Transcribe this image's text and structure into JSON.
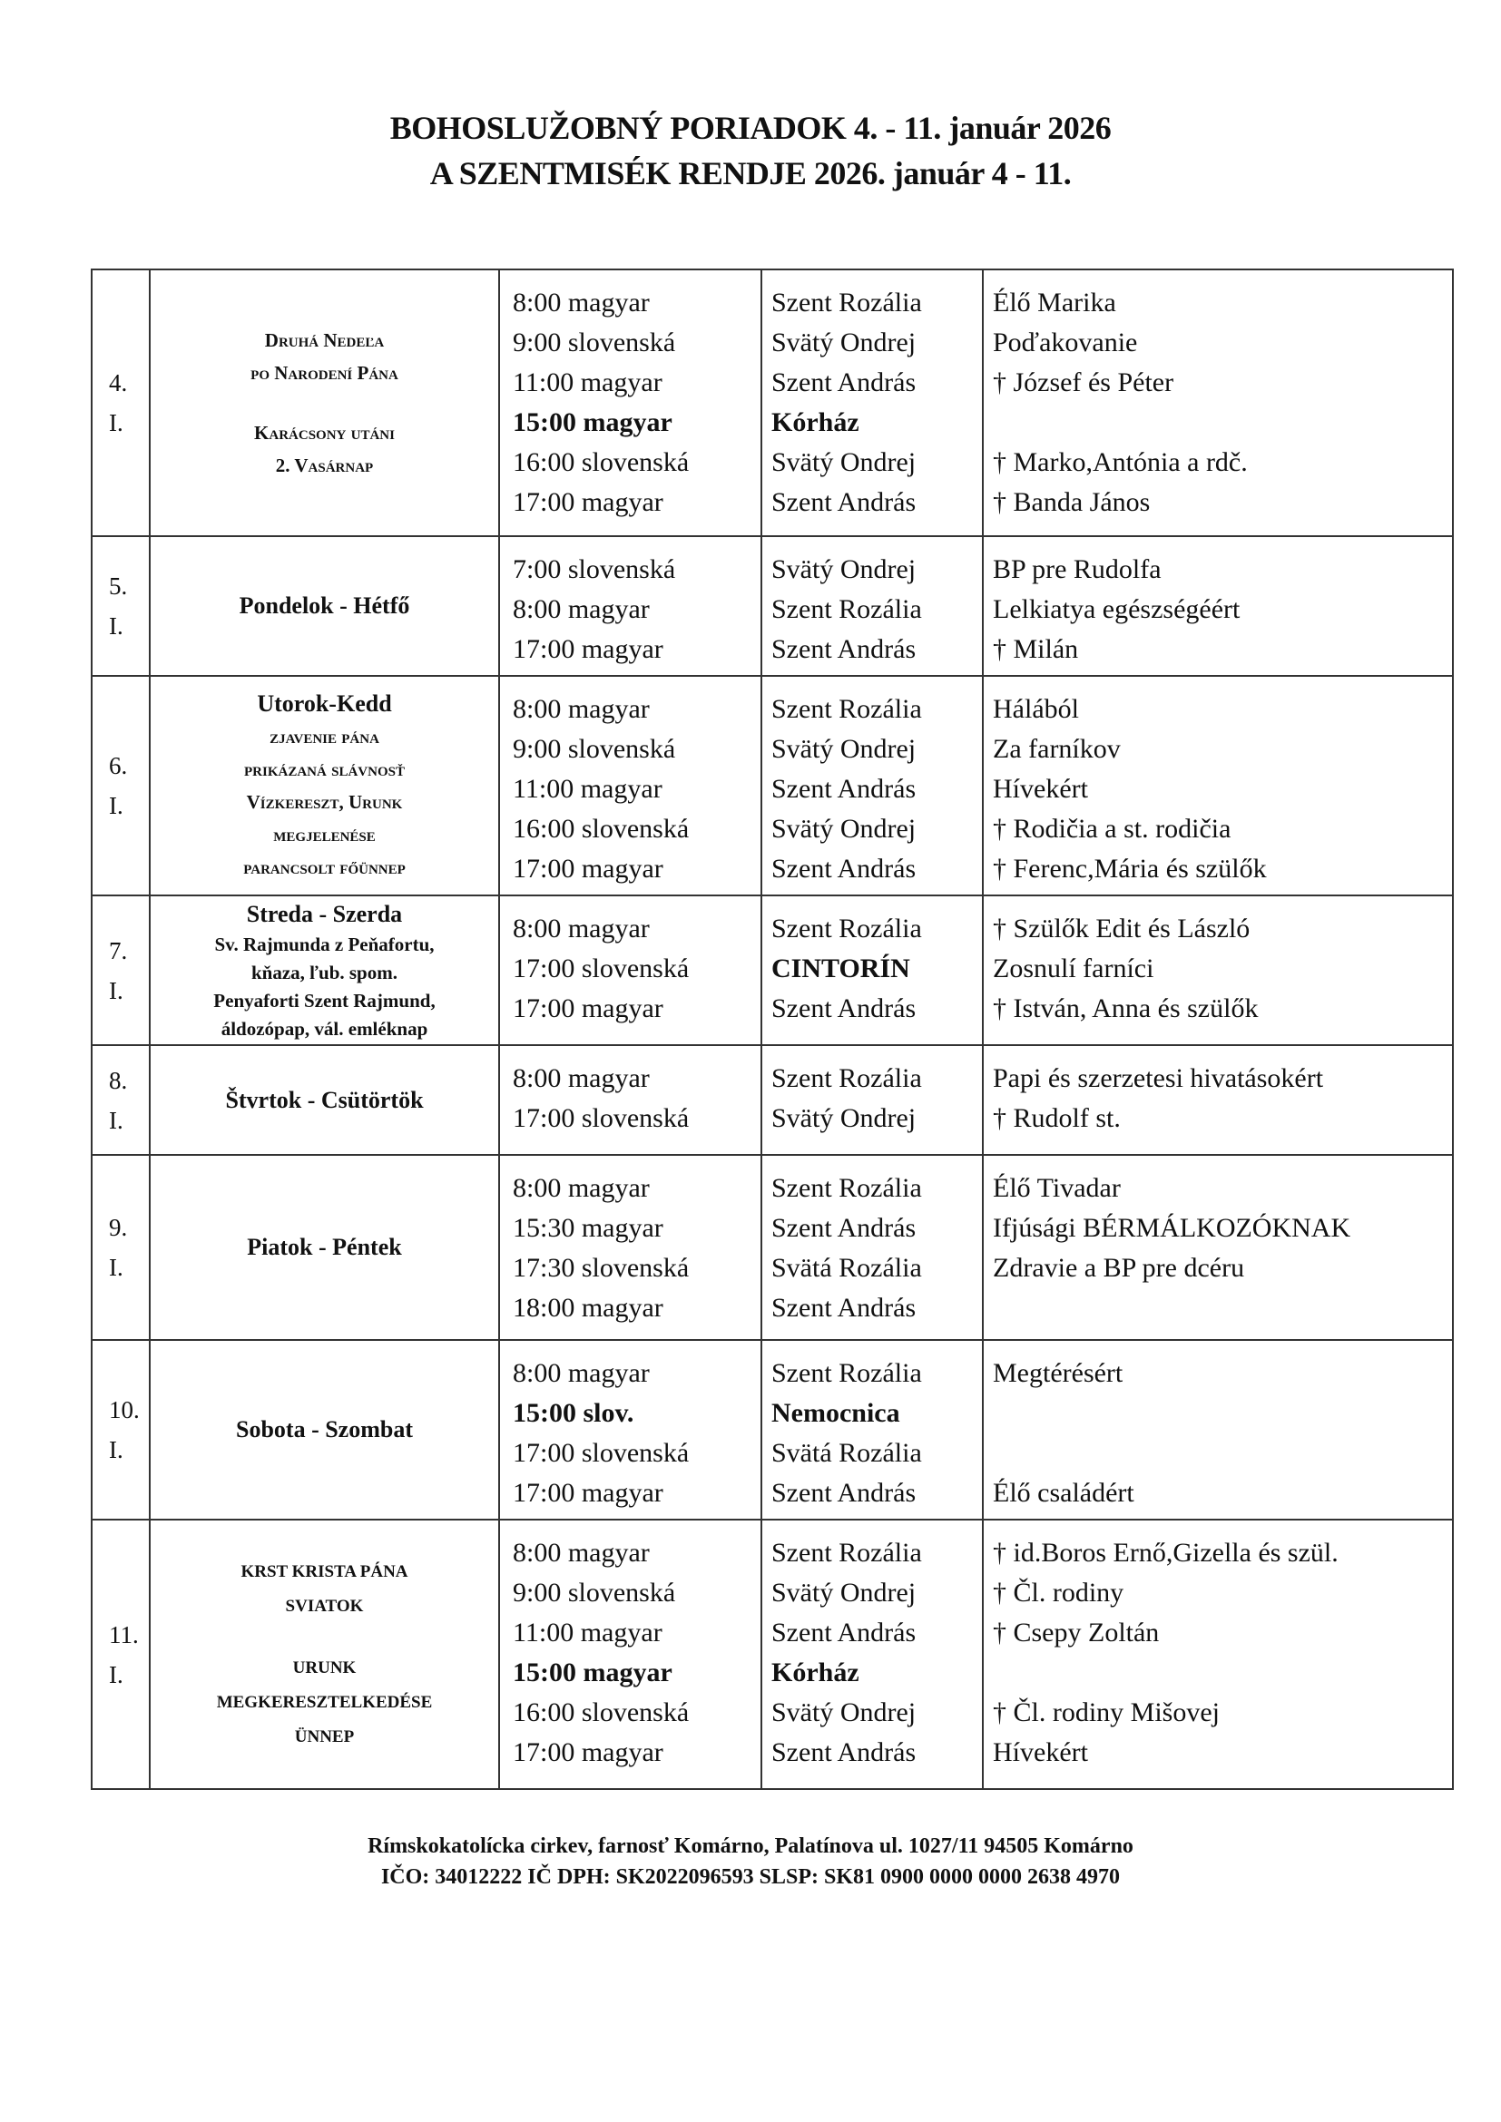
{
  "header": {
    "title_sk": "BOHOSLUŽOBNÝ PORIADOK  4. - 11. január 2026",
    "title_hu": "A  SZENTMISÉK RENDJE 2026. január 4 - 11."
  },
  "days": [
    {
      "date": [
        "4.",
        "I."
      ],
      "label": [
        {
          "t": "Druhá Nedeľa",
          "s": "sc"
        },
        {
          "t": "po Narodení Pána",
          "s": "sc"
        },
        {
          "t": "",
          "s": "empty"
        },
        {
          "t": "Karácsony utáni",
          "s": "sc"
        },
        {
          "t": "2. Vasárnap",
          "s": "sc"
        }
      ],
      "masses": [
        {
          "time": "8:00 magyar",
          "place": "Szent Rozália",
          "intention": "Élő Marika"
        },
        {
          "time": "9:00 slovenská",
          "place": "Svätý Ondrej",
          "intention": "Poďakovanie"
        },
        {
          "time": "11:00 magyar",
          "place": "Szent András",
          "intention": "† József és Péter"
        },
        {
          "time": "15:00 magyar",
          "place": "Kórház",
          "intention": "",
          "bold": true
        },
        {
          "time": "16:00 slovenská",
          "place": "Svätý Ondrej",
          "intention": "† Marko,Antónia a rdč."
        },
        {
          "time": "17:00 magyar",
          "place": "Szent András",
          "intention": "† Banda János"
        }
      ]
    },
    {
      "date": [
        "5.",
        "I."
      ],
      "label": [
        {
          "t": "Pondelok - Hétfő",
          "s": "main"
        }
      ],
      "masses": [
        {
          "time": "7:00 slovenská",
          "place": "Svätý Ondrej",
          "intention": "BP pre Rudolfa"
        },
        {
          "time": "8:00 magyar",
          "place": "Szent Rozália",
          "intention": "Lelkiatya egészségéért"
        },
        {
          "time": "17:00 magyar",
          "place": "Szent András",
          "intention": "† Milán"
        }
      ]
    },
    {
      "date": [
        "6.",
        "I."
      ],
      "label": [
        {
          "t": "Utorok-Kedd",
          "s": "main"
        },
        {
          "t": "zjavenie pána",
          "s": "sc"
        },
        {
          "t": "prikázaná slávnosť",
          "s": "sc"
        },
        {
          "t": "Vízkereszt, Urunk",
          "s": "sc"
        },
        {
          "t": "megjelenése",
          "s": "sc"
        },
        {
          "t": "parancsolt főünnep",
          "s": "sc"
        }
      ],
      "masses": [
        {
          "time": "8:00 magyar",
          "place": "Szent Rozália",
          "intention": "Hálából"
        },
        {
          "time": "9:00 slovenská",
          "place": "Svätý Ondrej",
          "intention": "Za farníkov"
        },
        {
          "time": "11:00 magyar",
          "place": "Szent András",
          "intention": "Hívekért"
        },
        {
          "time": "16:00 slovenská",
          "place": "Svätý Ondrej",
          "intention": "† Rodičia a st. rodičia"
        },
        {
          "time": "17:00 magyar",
          "place": "Szent András",
          "intention": "† Ferenc,Mária és szülők"
        }
      ]
    },
    {
      "date": [
        "7.",
        "I."
      ],
      "label": [
        {
          "t": "Streda - Szerda",
          "s": "main"
        },
        {
          "t": "Sv. Rajmunda z Peňafortu,",
          "s": "sm"
        },
        {
          "t": "kňaza, ľub. spom.",
          "s": "sm"
        },
        {
          "t": "Penyaforti Szent Rajmund,",
          "s": "sm"
        },
        {
          "t": "áldozópap, vál. emléknap",
          "s": "sm"
        }
      ],
      "masses": [
        {
          "time": "8:00 magyar",
          "place": "Szent Rozália",
          "intention": "† Szülők Edit és László"
        },
        {
          "time": "17:00 slovenská",
          "place": "CINTORÍN",
          "intention": "Zosnulí farníci",
          "place_bold": true
        },
        {
          "time": "17:00 magyar",
          "place": "Szent András",
          "intention": "† István, Anna és szülők"
        }
      ]
    },
    {
      "date": [
        "8.",
        "I."
      ],
      "label": [
        {
          "t": "Štvrtok - Csütörtök",
          "s": "main"
        }
      ],
      "masses": [
        {
          "time": "8:00 magyar",
          "place": "Szent Rozália",
          "intention": "Papi és szerzetesi hivatásokért"
        },
        {
          "time": "17:00 slovenská",
          "place": "Svätý Ondrej",
          "intention": "† Rudolf st."
        }
      ]
    },
    {
      "date": [
        "9.",
        "I."
      ],
      "label": [
        {
          "t": "Piatok - Péntek",
          "s": "main"
        }
      ],
      "masses": [
        {
          "time": "8:00 magyar",
          "place": "Szent Rozália",
          "intention": "Élő Tivadar"
        },
        {
          "time": "15:30 magyar",
          "place": "Szent András",
          "intention": "Ifjúsági BÉRMÁLKOZÓKNAK"
        },
        {
          "time": "17:30 slovenská",
          "place": "Svätá Rozália",
          "intention": "Zdravie a BP pre dcéru"
        },
        {
          "time": "18:00 magyar",
          "place": "Szent András",
          "intention": ""
        }
      ]
    },
    {
      "date": [
        "10.",
        "I."
      ],
      "label": [
        {
          "t": "Sobota - Szombat",
          "s": "main"
        }
      ],
      "masses": [
        {
          "time": "8:00 magyar",
          "place": "Szent Rozália",
          "intention": "Megtérésért"
        },
        {
          "time": "15:00 slov.",
          "place": "Nemocnica",
          "intention": "",
          "bold": true
        },
        {
          "time": "17:00 slovenská",
          "place": "Svätá Rozália",
          "intention": ""
        },
        {
          "time": "17:00 magyar",
          "place": "Szent András",
          "intention": "Élő családért"
        }
      ]
    },
    {
      "date": [
        "11.",
        "I."
      ],
      "label": [
        {
          "t": "KRST KRISTA PÁNA",
          "s": "cap"
        },
        {
          "t": "SVIATOK",
          "s": "cap"
        },
        {
          "t": "",
          "s": "empty"
        },
        {
          "t": "URUNK",
          "s": "cap"
        },
        {
          "t": "MEGKERESZTELKEDÉSE",
          "s": "cap"
        },
        {
          "t": "ÜNNEP",
          "s": "cap"
        }
      ],
      "masses": [
        {
          "time": "8:00 magyar",
          "place": "Szent Rozália",
          "intention": "† id.Boros Ernő,Gizella és szül."
        },
        {
          "time": "9:00 slovenská",
          "place": "Svätý Ondrej",
          "intention": "† Čl. rodiny"
        },
        {
          "time": "11:00 magyar",
          "place": "Szent András",
          "intention": "† Csepy Zoltán"
        },
        {
          "time": "15:00 magyar",
          "place": "Kórház",
          "intention": "",
          "bold": true
        },
        {
          "time": "16:00 slovenská",
          "place": "Svätý Ondrej",
          "intention": "† Čl. rodiny Mišovej"
        },
        {
          "time": "17:00 magyar",
          "place": "Szent András",
          "intention": "Hívekért"
        }
      ]
    }
  ],
  "footer": {
    "address": "Rímskokatolícka cirkev, farnosť Komárno, Palatínova ul. 1027/11 94505 Komárno",
    "ids": "IČO: 34012222 IČ DPH: SK2022096593 SLSP: SK81 0900 0000 0000 2638 4970"
  }
}
